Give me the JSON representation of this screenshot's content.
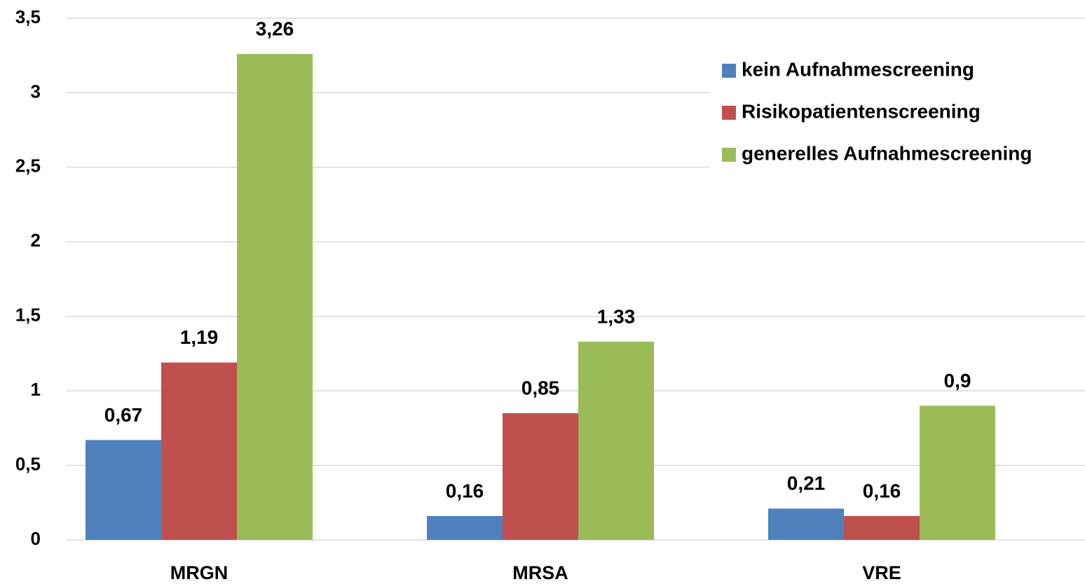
{
  "chart_data": {
    "type": "bar",
    "categories": [
      "MRGN",
      "MRSA",
      "VRE"
    ],
    "series": [
      {
        "name": "kein Aufnahmescreening",
        "color": "#4f81bd",
        "values": [
          0.67,
          0.16,
          0.21
        ],
        "value_labels": [
          "0,67",
          "0,16",
          "0,21"
        ]
      },
      {
        "name": "Risikopatientenscreening",
        "color": "#c0504d",
        "values": [
          1.19,
          0.85,
          0.16
        ],
        "value_labels": [
          "1,19",
          "0,85",
          "0,16"
        ]
      },
      {
        "name": "generelles Aufnahmescreening",
        "color": "#9bbb59",
        "values": [
          3.26,
          1.33,
          0.9
        ],
        "value_labels": [
          "3,26",
          "1,33",
          "0,9"
        ]
      }
    ],
    "ylim": [
      0,
      3.5
    ],
    "yticks": [
      0,
      {
        "value": 0.5,
        "label": "0,5"
      },
      1,
      {
        "value": 1.5,
        "label": "1,5"
      },
      2,
      {
        "value": 2.5,
        "label": "2,5"
      },
      3,
      {
        "value": 3.5,
        "label": "3,5"
      }
    ],
    "grid": true,
    "legend": "upper right"
  }
}
